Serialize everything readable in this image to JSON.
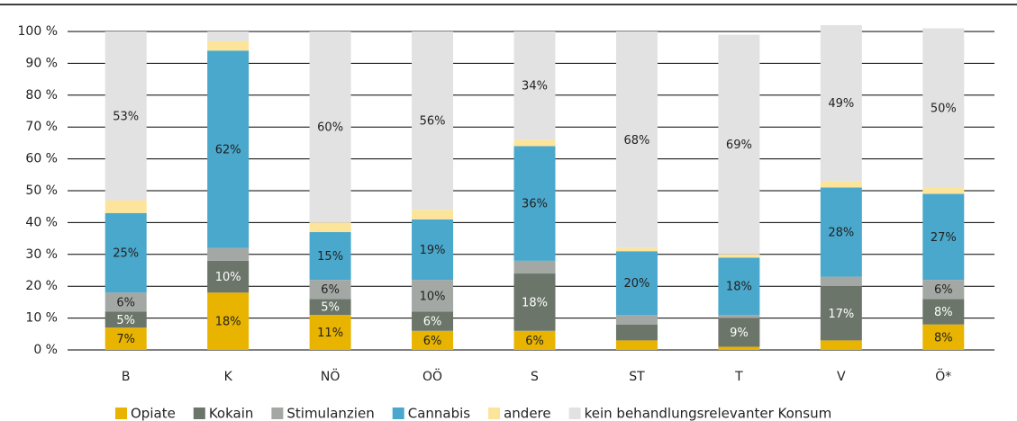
{
  "chart_data": {
    "type": "stacked_bar",
    "categories": [
      "B",
      "K",
      "NÖ",
      "OÖ",
      "S",
      "ST",
      "T",
      "V",
      "Ö*"
    ],
    "series": [
      {
        "name": "Opiate",
        "color": "#e8b400",
        "values": [
          7,
          18,
          11,
          6,
          6,
          3,
          1,
          3,
          8
        ],
        "value_labels": [
          "7%",
          "18%",
          "11%",
          "6%",
          "6%",
          null,
          null,
          null,
          "8%"
        ]
      },
      {
        "name": "Kokain",
        "color": "#6b7569",
        "values": [
          5,
          10,
          5,
          6,
          18,
          5,
          9,
          17,
          8
        ],
        "value_labels": [
          "5%",
          "10%",
          "5%",
          "6%",
          "18%",
          null,
          "9%",
          "17%",
          "8%"
        ]
      },
      {
        "name": "Stimulanzien",
        "color": "#a3a8a5",
        "values": [
          6,
          4,
          6,
          10,
          4,
          3,
          1,
          3,
          6
        ],
        "value_labels": [
          "6%",
          null,
          "6%",
          "10%",
          null,
          null,
          null,
          null,
          "6%"
        ]
      },
      {
        "name": "Cannabis",
        "color": "#4aa8cc",
        "values": [
          25,
          62,
          15,
          19,
          36,
          20,
          18,
          28,
          27
        ],
        "value_labels": [
          "25%",
          "62%",
          "15%",
          "19%",
          "36%",
          "20%",
          "18%",
          "28%",
          "27%"
        ]
      },
      {
        "name": "andere",
        "color": "#fce49a",
        "values": [
          4,
          3,
          3,
          3,
          2,
          1,
          1,
          2,
          2
        ]
      },
      {
        "name": "kein behandlungsrelevanter Konsum",
        "color": "#e2e2e2",
        "values": [
          53,
          3,
          60,
          56,
          34,
          68,
          69,
          49,
          50
        ],
        "value_labels": [
          "53%",
          null,
          "60%",
          "56%",
          "34%",
          "68%",
          "69%",
          "49%",
          "50%"
        ]
      }
    ],
    "ylim": [
      0,
      100
    ],
    "yticks": [
      {
        "value": 0,
        "label": "0 %"
      },
      {
        "value": 10,
        "label": "10 %"
      },
      {
        "value": 20,
        "label": "20 %"
      },
      {
        "value": 30,
        "label": "30 %"
      },
      {
        "value": 40,
        "label": "40 %"
      },
      {
        "value": 50,
        "label": "50 %"
      },
      {
        "value": 60,
        "label": "60 %"
      },
      {
        "value": 70,
        "label": "70 %"
      },
      {
        "value": 80,
        "label": "80 %"
      },
      {
        "value": 90,
        "label": "90 %"
      },
      {
        "value": 100,
        "label": "100 %"
      }
    ],
    "grid": true,
    "legend": "bottom"
  }
}
